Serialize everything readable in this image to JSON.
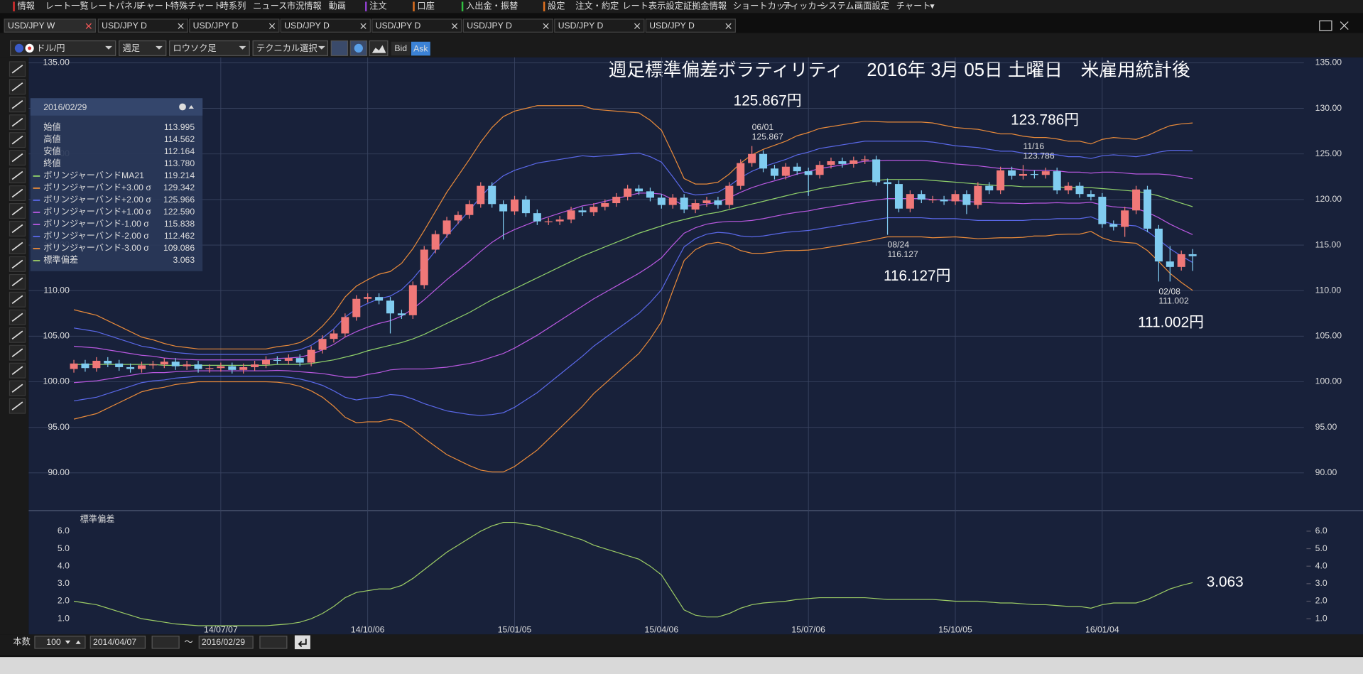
{
  "menu": [
    "情報",
    "レート一覧",
    "レートパネル",
    "チャート",
    "特殊チャート",
    "時系列",
    "ニュース",
    "市況情報",
    "動画",
    "注文",
    "口座",
    "入出金・振替",
    "設定",
    "注文・約定",
    "レート表示設定",
    "証拠金情報",
    "ショートカット",
    "ティッカー",
    "システム",
    "画面設定",
    "チャート"
  ],
  "tabs": [
    "USD/JPY W",
    "USD/JPY D",
    "USD/JPY D",
    "USD/JPY D",
    "USD/JPY D",
    "USD/JPY D",
    "USD/JPY D",
    "USD/JPY D"
  ],
  "toolbar": {
    "symbol": "ドル/円",
    "period": "週足",
    "style": "ロウソク足",
    "tech": "テクニカル選択",
    "bid": "Bid",
    "ask": "Ask"
  },
  "footer": {
    "count_label": "本数",
    "count": "100",
    "from": "2014/04/07",
    "sep": "～",
    "to": "2016/02/29"
  },
  "info_panel": {
    "date": "2016/02/29",
    "rows": [
      {
        "label": "始値",
        "value": "113.995"
      },
      {
        "label": "高値",
        "value": "114.562"
      },
      {
        "label": "安値",
        "value": "112.164"
      },
      {
        "label": "終値",
        "value": "113.780"
      }
    ]
  },
  "chart_data": [
    {
      "type": "candlestick",
      "title": "週足標準偏差ボラティリティ　 2016年 3月 05日 土曜日　米雇用統計後",
      "up_color": "#f07878",
      "down_color": "#80ccf0",
      "grid": true,
      "ylim": [
        86,
        135.6
      ],
      "yticks": [
        {
          "value": 90,
          "label": "90.00"
        },
        {
          "value": 95,
          "label": "95.00"
        },
        {
          "value": 100,
          "label": "100.00"
        },
        {
          "value": 105,
          "label": "105.00"
        },
        {
          "value": 110,
          "label": "110.00"
        },
        {
          "value": 115,
          "label": "115.00"
        },
        {
          "value": 120,
          "label": "120.00"
        },
        {
          "value": 125,
          "label": "125.00"
        },
        {
          "value": 130,
          "label": "130.00"
        },
        {
          "value": 135,
          "label": "135.00"
        }
      ],
      "candles": [
        [
          101.4,
          102.4,
          101.0,
          102.0
        ],
        [
          102.0,
          102.4,
          101.1,
          101.5
        ],
        [
          101.5,
          102.7,
          101.1,
          102.3
        ],
        [
          102.3,
          102.7,
          101.6,
          102.0
        ],
        [
          102.0,
          102.4,
          101.2,
          101.6
        ],
        [
          101.6,
          102.0,
          101.0,
          101.4
        ],
        [
          101.4,
          102.2,
          101.0,
          101.8
        ],
        [
          101.8,
          102.3,
          101.4,
          101.9
        ],
        [
          101.9,
          102.6,
          101.5,
          102.2
        ],
        [
          102.2,
          102.6,
          101.3,
          101.7
        ],
        [
          101.7,
          102.3,
          101.3,
          101.9
        ],
        [
          101.9,
          102.3,
          101.0,
          101.4
        ],
        [
          101.4,
          101.9,
          101.0,
          101.5
        ],
        [
          101.5,
          102.1,
          101.1,
          101.7
        ],
        [
          101.7,
          102.1,
          100.9,
          101.3
        ],
        [
          101.3,
          102.0,
          100.9,
          101.6
        ],
        [
          101.6,
          102.3,
          101.2,
          101.9
        ],
        [
          101.9,
          102.8,
          101.5,
          102.4
        ],
        [
          102.4,
          102.8,
          101.9,
          102.3
        ],
        [
          102.3,
          103.0,
          101.9,
          102.6
        ],
        [
          102.6,
          103.0,
          101.7,
          102.1
        ],
        [
          102.1,
          103.9,
          101.7,
          103.5
        ],
        [
          103.5,
          105.1,
          103.1,
          104.7
        ],
        [
          104.7,
          105.7,
          104.3,
          105.3
        ],
        [
          105.3,
          107.5,
          104.9,
          107.1
        ],
        [
          107.1,
          109.5,
          106.7,
          109.1
        ],
        [
          109.1,
          109.7,
          108.7,
          109.3
        ],
        [
          109.3,
          109.7,
          108.5,
          108.9
        ],
        [
          108.9,
          109.3,
          105.3,
          107.5
        ],
        [
          107.5,
          107.9,
          106.9,
          107.3
        ],
        [
          107.3,
          111.0,
          106.9,
          110.6
        ],
        [
          110.6,
          114.9,
          110.2,
          114.5
        ],
        [
          114.5,
          116.6,
          114.1,
          116.2
        ],
        [
          116.2,
          118.1,
          115.8,
          117.7
        ],
        [
          117.7,
          118.7,
          117.3,
          118.3
        ],
        [
          118.3,
          119.9,
          117.9,
          119.5
        ],
        [
          119.5,
          121.9,
          119.1,
          121.5
        ],
        [
          121.5,
          121.9,
          119.1,
          119.5
        ],
        [
          119.5,
          119.9,
          115.6,
          118.7
        ],
        [
          118.7,
          120.4,
          118.3,
          120.0
        ],
        [
          120.0,
          120.4,
          118.1,
          118.5
        ],
        [
          118.5,
          118.9,
          117.2,
          117.6
        ],
        [
          117.6,
          118.0,
          117.2,
          117.6
        ],
        [
          117.6,
          118.2,
          117.2,
          117.8
        ],
        [
          117.8,
          119.2,
          117.4,
          118.8
        ],
        [
          118.8,
          119.2,
          118.2,
          118.6
        ],
        [
          118.6,
          119.6,
          118.2,
          119.2
        ],
        [
          119.2,
          120.0,
          118.8,
          119.6
        ],
        [
          119.6,
          120.7,
          119.2,
          120.3
        ],
        [
          120.3,
          121.6,
          119.9,
          121.2
        ],
        [
          121.2,
          121.6,
          120.5,
          120.9
        ],
        [
          120.9,
          121.3,
          119.8,
          120.2
        ],
        [
          120.2,
          120.6,
          119.0,
          119.4
        ],
        [
          119.4,
          120.6,
          119.0,
          120.2
        ],
        [
          120.2,
          120.6,
          118.5,
          118.9
        ],
        [
          118.9,
          120.0,
          118.5,
          119.6
        ],
        [
          119.6,
          120.3,
          119.2,
          119.9
        ],
        [
          119.9,
          120.3,
          119.0,
          119.4
        ],
        [
          119.4,
          121.9,
          119.0,
          121.5
        ],
        [
          121.5,
          124.4,
          121.1,
          124.0
        ],
        [
          124.0,
          125.867,
          123.6,
          125.0
        ],
        [
          125.0,
          125.4,
          123.0,
          123.4
        ],
        [
          123.4,
          123.8,
          122.2,
          122.6
        ],
        [
          122.6,
          124.0,
          122.2,
          123.6
        ],
        [
          123.6,
          124.0,
          122.7,
          123.1
        ],
        [
          123.1,
          123.5,
          120.4,
          122.7
        ],
        [
          122.7,
          124.2,
          122.3,
          123.8
        ],
        [
          123.8,
          124.6,
          123.4,
          124.2
        ],
        [
          124.2,
          124.6,
          123.5,
          123.9
        ],
        [
          123.9,
          124.7,
          123.5,
          124.3
        ],
        [
          124.3,
          124.8,
          123.9,
          124.4
        ],
        [
          124.4,
          124.8,
          121.5,
          121.9
        ],
        [
          121.9,
          122.3,
          116.127,
          121.7
        ],
        [
          121.7,
          122.1,
          118.6,
          119.0
        ],
        [
          119.0,
          121.0,
          118.6,
          120.6
        ],
        [
          120.6,
          121.0,
          119.6,
          120.0
        ],
        [
          120.0,
          120.4,
          119.6,
          120.0
        ],
        [
          120.0,
          120.4,
          119.4,
          119.8
        ],
        [
          119.8,
          121.0,
          119.4,
          120.6
        ],
        [
          120.6,
          121.0,
          118.4,
          119.4
        ],
        [
          119.4,
          121.9,
          119.0,
          121.5
        ],
        [
          121.5,
          121.9,
          120.6,
          121.0
        ],
        [
          121.0,
          123.6,
          120.6,
          123.2
        ],
        [
          123.2,
          123.6,
          122.2,
          122.6
        ],
        [
          122.6,
          123.786,
          122.2,
          122.8
        ],
        [
          122.8,
          123.2,
          122.3,
          122.7
        ],
        [
          122.7,
          123.5,
          122.3,
          123.1
        ],
        [
          123.1,
          123.5,
          120.6,
          121.0
        ],
        [
          121.0,
          121.9,
          120.6,
          121.5
        ],
        [
          121.5,
          121.9,
          120.2,
          120.6
        ],
        [
          120.6,
          121.0,
          119.9,
          120.3
        ],
        [
          120.3,
          120.7,
          116.9,
          117.3
        ],
        [
          117.3,
          117.7,
          116.6,
          117.0
        ],
        [
          117.0,
          119.2,
          115.9,
          118.8
        ],
        [
          118.8,
          121.5,
          118.4,
          121.1
        ],
        [
          121.1,
          121.5,
          116.4,
          116.8
        ],
        [
          116.8,
          117.2,
          111.002,
          113.2
        ],
        [
          113.2,
          114.9,
          111.0,
          112.6
        ],
        [
          112.6,
          114.4,
          112.2,
          114.0
        ],
        [
          113.995,
          114.562,
          112.164,
          113.78
        ]
      ],
      "ma": {
        "name": "ボリンジャーバンドMA21",
        "color": "#8fd06a",
        "values": [
          101.9,
          101.9,
          101.9,
          101.9,
          101.9,
          101.9,
          101.9,
          101.9,
          101.8,
          101.8,
          101.8,
          101.8,
          101.8,
          101.8,
          101.8,
          101.8,
          101.8,
          101.8,
          101.9,
          101.9,
          101.9,
          102.0,
          102.2,
          102.4,
          102.7,
          103.0,
          103.4,
          103.7,
          104.0,
          104.3,
          104.7,
          105.2,
          105.8,
          106.4,
          107.0,
          107.6,
          108.3,
          109.0,
          109.6,
          110.2,
          110.8,
          111.4,
          112.0,
          112.6,
          113.2,
          113.8,
          114.3,
          114.8,
          115.3,
          115.8,
          116.3,
          116.7,
          117.1,
          117.5,
          117.8,
          118.1,
          118.4,
          118.6,
          118.9,
          119.2,
          119.5,
          119.8,
          120.1,
          120.4,
          120.7,
          120.9,
          121.2,
          121.4,
          121.6,
          121.8,
          122.0,
          122.1,
          122.2,
          122.2,
          122.2,
          122.2,
          122.1,
          122.0,
          121.9,
          121.8,
          121.7,
          121.6,
          121.5,
          121.5,
          121.4,
          121.4,
          121.4,
          121.4,
          121.3,
          121.3,
          121.3,
          121.2,
          121.1,
          121.0,
          120.9,
          120.7,
          120.4,
          120.0,
          119.6,
          119.214
        ]
      },
      "bands": [
        {
          "name": "ボリンジャーバンド+3.00 σ",
          "k": 3,
          "color": "#e88a3a",
          "last": "129.342"
        },
        {
          "name": "ボリンジャーバンド+2.00 σ",
          "k": 2,
          "color": "#5a68e8",
          "last": "125.966"
        },
        {
          "name": "ボリンジャーバンド+1.00 σ",
          "k": 1,
          "color": "#b858e0",
          "last": "122.590"
        },
        {
          "name": "ボリンジャーバンド-1.00 σ",
          "k": -1,
          "color": "#b858e0",
          "last": "115.838"
        },
        {
          "name": "ボリンジャーバンド-2.00 σ",
          "k": -2,
          "color": "#5a68e8",
          "last": "112.462"
        },
        {
          "name": "ボリンジャーバンド-3.00 σ",
          "k": -3,
          "color": "#e88a3a",
          "last": "109.086"
        }
      ],
      "markers": [
        {
          "date": "06/01",
          "value": 125.867,
          "label": "125.867円"
        },
        {
          "date": "08/24",
          "value": 116.127,
          "label": "116.127円"
        },
        {
          "date": "11/16",
          "value": 123.786,
          "label": "123.786円"
        },
        {
          "date": "02/08",
          "value": 111.002,
          "label": "111.002円"
        }
      ]
    },
    {
      "type": "line",
      "title": "標準偏差",
      "color": "#9ccc65",
      "ylim": [
        0.2,
        7.05
      ],
      "yticks": [
        {
          "value": 1,
          "label": "1.0"
        },
        {
          "value": 2,
          "label": "2.0"
        },
        {
          "value": 3,
          "label": "3.0"
        },
        {
          "value": 4,
          "label": "4.0"
        },
        {
          "value": 5,
          "label": "5.0"
        },
        {
          "value": 6,
          "label": "6.0"
        }
      ],
      "categories": [
        null,
        null,
        null,
        null,
        null,
        null,
        null,
        null,
        null,
        null,
        null,
        null,
        null,
        "14/07/07",
        null,
        null,
        null,
        null,
        null,
        null,
        null,
        null,
        null,
        null,
        null,
        null,
        "14/10/06",
        null,
        null,
        null,
        null,
        null,
        null,
        null,
        null,
        null,
        null,
        null,
        null,
        "15/01/05",
        null,
        null,
        null,
        null,
        null,
        null,
        null,
        null,
        null,
        null,
        null,
        null,
        "15/04/06",
        null,
        null,
        null,
        null,
        null,
        null,
        null,
        null,
        null,
        null,
        null,
        null,
        "15/07/06",
        null,
        null,
        null,
        null,
        null,
        null,
        null,
        null,
        null,
        null,
        null,
        null,
        "15/10/05",
        null,
        null,
        null,
        null,
        null,
        null,
        null,
        null,
        null,
        null,
        null,
        null,
        "16/01/04",
        null,
        null,
        null,
        null,
        null,
        null,
        null,
        null
      ],
      "values": [
        2.0,
        1.9,
        1.8,
        1.6,
        1.4,
        1.2,
        1.0,
        0.9,
        0.8,
        0.7,
        0.65,
        0.6,
        0.6,
        0.6,
        0.6,
        0.6,
        0.6,
        0.6,
        0.65,
        0.7,
        0.8,
        1.0,
        1.3,
        1.7,
        2.2,
        2.5,
        2.6,
        2.7,
        2.7,
        2.9,
        3.3,
        3.8,
        4.3,
        4.8,
        5.2,
        5.6,
        6.0,
        6.3,
        6.5,
        6.5,
        6.4,
        6.3,
        6.1,
        5.9,
        5.7,
        5.5,
        5.2,
        5.0,
        4.8,
        4.6,
        4.4,
        4.0,
        3.5,
        2.5,
        1.5,
        1.2,
        1.1,
        1.1,
        1.3,
        1.6,
        1.8,
        1.9,
        1.95,
        2.0,
        2.1,
        2.15,
        2.2,
        2.2,
        2.2,
        2.2,
        2.2,
        2.15,
        2.1,
        2.1,
        2.1,
        2.1,
        2.1,
        2.05,
        2.0,
        2.0,
        2.0,
        1.95,
        1.9,
        1.9,
        1.85,
        1.8,
        1.8,
        1.75,
        1.7,
        1.7,
        1.6,
        1.8,
        1.9,
        1.9,
        1.9,
        2.1,
        2.4,
        2.7,
        2.9,
        3.063
      ]
    }
  ]
}
